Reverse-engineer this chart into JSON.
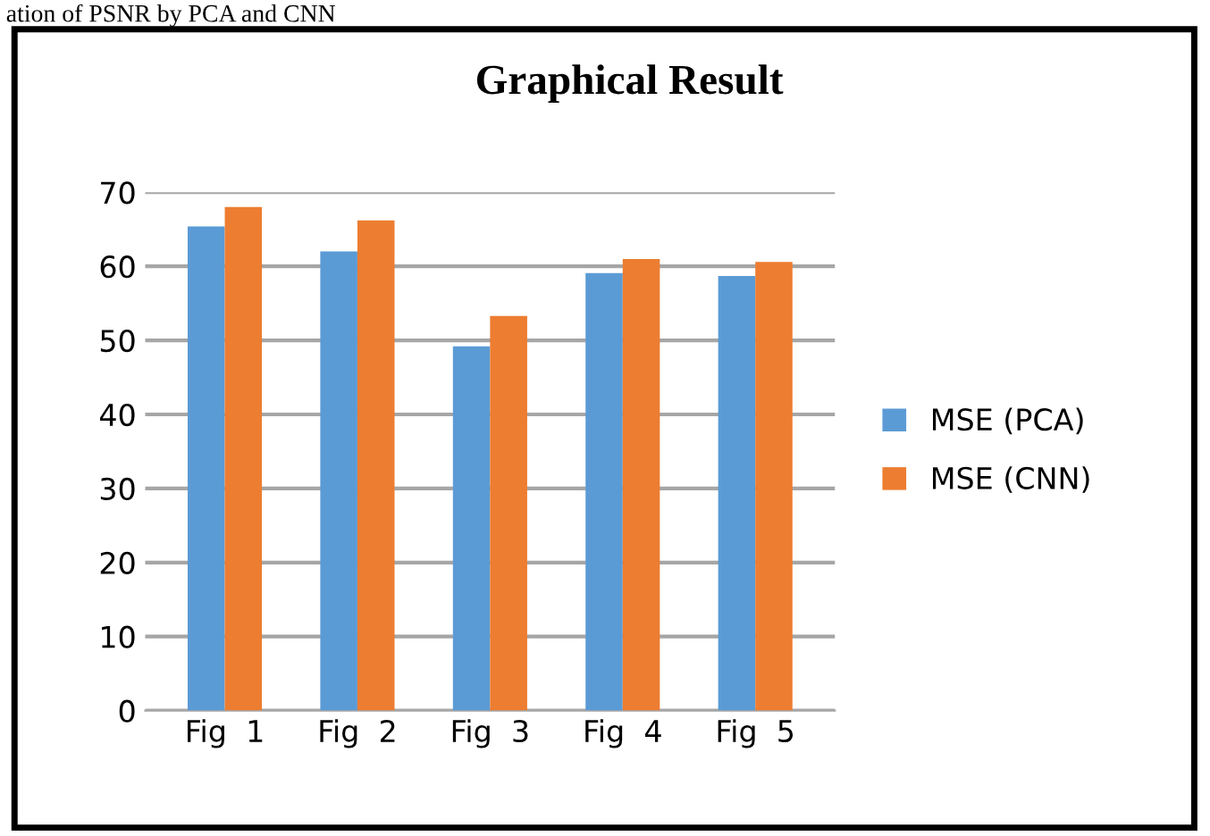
{
  "chart_data": {
    "type": "bar",
    "title": "Graphical Result",
    "annotations": [
      "ation of PSNR by PCA and CNN"
    ],
    "categories": [
      "Fig  1",
      "Fig  2",
      "Fig  3",
      "Fig  4",
      "Fig  5"
    ],
    "series": [
      {
        "name": "MSE (PCA)",
        "color": "#5b9bd5",
        "values": [
          65.4,
          62.0,
          49.2,
          59.1,
          58.7
        ]
      },
      {
        "name": "MSE (CNN)",
        "color": "#ed7d31",
        "values": [
          68.0,
          66.2,
          53.3,
          61.0,
          60.6
        ]
      }
    ],
    "ylim": [
      0,
      70
    ],
    "yticks": [
      0,
      10,
      20,
      30,
      40,
      50,
      60,
      70
    ],
    "grid": "y",
    "legend": "right"
  }
}
